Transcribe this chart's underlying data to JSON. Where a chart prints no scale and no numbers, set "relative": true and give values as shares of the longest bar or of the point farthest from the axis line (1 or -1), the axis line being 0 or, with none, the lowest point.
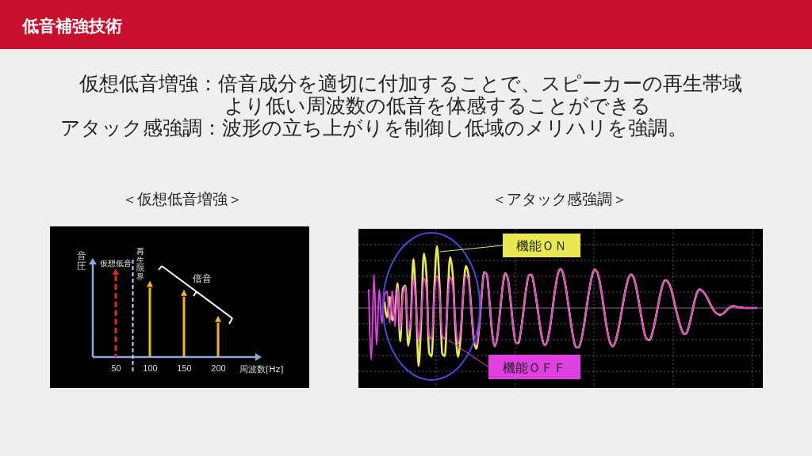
{
  "chart_data": [
    {
      "type": "other",
      "title": "低音補強技術",
      "annotations": [
        "仮想低音増強：倍音成分を適切に付加することで、スピーカーの再生帯域",
        "より低い周波数の低音を体感することができる",
        "アタック感強調：波形の立ち上がりを制御し低域のメリハリを強調。"
      ]
    },
    {
      "type": "bar",
      "title": "＜仮想低音増強＞",
      "categories": [
        "50",
        "100",
        "150",
        "200"
      ],
      "xlabel": "周波数[Hz]",
      "ylabel": "音圧",
      "relative": true,
      "series": [
        {
          "color": "#e02828",
          "line_style": "dashed",
          "values": [
            1,
            null,
            null,
            null
          ]
        },
        {
          "color": "#f0b428",
          "values": [
            null,
            0.85,
            0.74,
            0.42
          ]
        }
      ],
      "annotations": [
        "仮想低音",
        "再生限界",
        "倍音"
      ]
    },
    {
      "type": "line",
      "title": "＜アタック感強調＞",
      "relative": true,
      "grid": true,
      "categories": [
        null,
        null,
        null,
        null,
        null,
        null,
        null,
        null,
        null,
        null,
        null,
        null,
        null,
        null,
        null,
        null,
        null,
        null,
        null,
        null,
        null,
        null,
        null,
        null,
        null,
        null,
        null,
        null,
        null,
        null,
        null,
        null,
        null,
        null,
        null,
        null,
        null,
        null,
        null,
        null,
        null,
        null,
        null,
        null,
        null,
        null,
        null,
        null,
        null,
        null,
        null,
        null,
        null,
        null,
        null,
        null,
        null,
        null,
        null,
        null,
        null,
        null,
        null,
        null,
        null,
        null,
        null,
        null,
        null,
        null,
        null,
        null,
        null,
        null,
        null,
        null,
        null,
        null,
        null,
        null,
        null,
        null,
        null,
        null,
        null,
        null,
        null,
        null,
        null,
        null,
        null,
        null,
        null,
        null,
        null,
        null,
        null,
        null,
        null,
        null,
        null,
        null,
        null,
        null,
        null,
        null,
        null,
        null,
        null,
        null,
        null,
        null,
        null,
        null,
        null,
        null,
        null,
        null,
        null,
        null,
        null,
        null,
        null,
        null,
        null,
        null,
        null,
        null,
        null,
        null,
        null,
        null,
        null,
        null,
        null,
        null,
        null,
        null,
        null,
        null,
        null,
        null,
        null,
        null,
        null,
        null,
        null,
        null,
        null
      ],
      "series": [
        {
          "name": "機能ＯＮ",
          "color": "#e8e850",
          "values": [
            null,
            null,
            null,
            null,
            null,
            null,
            0.1,
            -0.15,
            0.18,
            -0.2,
            -0.05,
            0.4,
            -0.54,
            0.31,
            0.36,
            -0.61,
            -0.23,
            0.79,
            0.1,
            -0.94,
            -0.18,
            0.88,
            0.52,
            -0.73,
            -0.78,
            0.32,
            1.0,
            0.34,
            -0.74,
            -0.78,
            0.12,
            0.82,
            0.54,
            -0.32,
            -0.79,
            -0.46,
            0.23,
            0.68,
            0.53,
            0.02,
            -0.5,
            -0.66,
            -0.34,
            0.2,
            0.58,
            0.54,
            0.11,
            -0.4,
            -0.62,
            -0.46,
            -0.07,
            0.34,
            0.56,
            0.47,
            0.13,
            -0.29,
            -0.56,
            -0.57,
            -0.36,
            -0.02,
            0.32,
            0.53,
            0.54,
            0.37,
            0.09,
            -0.22,
            -0.48,
            -0.6,
            -0.54,
            -0.33,
            -0.02,
            0.3,
            0.54,
            0.63,
            0.56,
            0.35,
            0.06,
            -0.24,
            -0.5,
            -0.64,
            -0.64,
            -0.51,
            -0.28,
            0.01,
            0.29,
            0.51,
            0.62,
            0.58,
            0.42,
            0.16,
            -0.14,
            -0.4,
            -0.57,
            -0.62,
            -0.54,
            -0.37,
            -0.14,
            0.11,
            0.33,
            0.49,
            0.54,
            0.48,
            0.31,
            0.07,
            -0.18,
            -0.4,
            -0.51,
            -0.52,
            -0.41,
            -0.23,
            -0.01,
            0.21,
            0.38,
            0.45,
            0.42,
            0.33,
            0.17,
            -0.02,
            -0.19,
            -0.33,
            -0.42,
            -0.41,
            -0.29,
            -0.11,
            0.09,
            0.24,
            0.3,
            0.28,
            0.23,
            0.16,
            0.07,
            -0.01,
            -0.07,
            -0.1,
            -0.11,
            -0.09,
            -0.05,
            -0.01,
            0.02,
            0.03,
            0.02,
            0.01,
            0.01,
            0,
            0,
            0,
            0,
            0,
            0
          ]
        },
        {
          "name": "機能ＯＦＦ",
          "color": "#e040e0",
          "values": [
            0.3,
            -0.84,
            0.54,
            -0.6,
            0.3,
            -0.25,
            0.2,
            0.27,
            -0.24,
            0.28,
            -0.3,
            0.33,
            -0.37,
            0.2,
            0.35,
            -0.4,
            -0.2,
            0.48,
            0.05,
            -0.54,
            -0.1,
            0.48,
            0.3,
            -0.45,
            -0.5,
            0.2,
            0.52,
            0.2,
            -0.45,
            -0.5,
            0.05,
            0.5,
            0.35,
            -0.2,
            -0.58,
            -0.35,
            0.2,
            0.53,
            0.45,
            0.0,
            -0.48,
            -0.6,
            -0.34,
            0.2,
            0.58,
            0.54,
            0.11,
            -0.4,
            -0.62,
            -0.46,
            -0.07,
            0.34,
            0.56,
            0.47,
            0.13,
            -0.29,
            -0.56,
            -0.57,
            -0.36,
            -0.02,
            0.32,
            0.53,
            0.54,
            0.37,
            0.09,
            -0.22,
            -0.48,
            -0.6,
            -0.54,
            -0.33,
            -0.02,
            0.3,
            0.54,
            0.63,
            0.56,
            0.35,
            0.06,
            -0.24,
            -0.5,
            -0.64,
            -0.64,
            -0.51,
            -0.28,
            0.01,
            0.29,
            0.51,
            0.62,
            0.58,
            0.42,
            0.16,
            -0.14,
            -0.4,
            -0.57,
            -0.62,
            -0.54,
            -0.37,
            -0.14,
            0.11,
            0.33,
            0.49,
            0.54,
            0.48,
            0.31,
            0.07,
            -0.18,
            -0.4,
            -0.51,
            -0.52,
            -0.41,
            -0.23,
            -0.01,
            0.21,
            0.38,
            0.45,
            0.42,
            0.33,
            0.17,
            -0.02,
            -0.19,
            -0.33,
            -0.42,
            -0.41,
            -0.29,
            -0.11,
            0.09,
            0.24,
            0.3,
            0.28,
            0.23,
            0.16,
            0.07,
            -0.01,
            -0.07,
            -0.1,
            -0.11,
            -0.09,
            -0.05,
            -0.01,
            0.02,
            0.03,
            0.02,
            0.01,
            0.01,
            0,
            0,
            0,
            0,
            0,
            0
          ]
        }
      ]
    }
  ]
}
